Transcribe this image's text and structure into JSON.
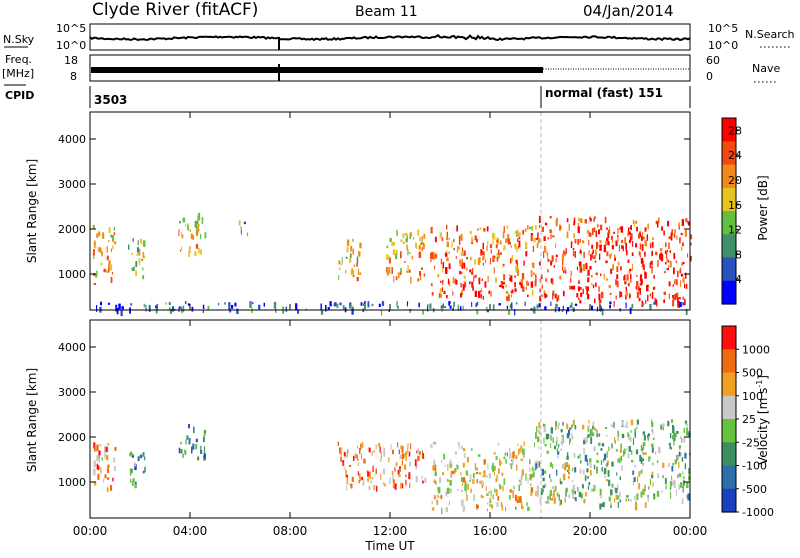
{
  "header": {
    "title": "Clyde River (fitACF)",
    "beam": "Beam 11",
    "date": "04/Jan/2014"
  },
  "strips": {
    "nsky": {
      "label": "N.Sky",
      "ticks": [
        "10^5",
        "10^0"
      ],
      "right_ticks": [
        "10^5",
        "10^0"
      ],
      "right_label": "N.Search"
    },
    "freq": {
      "label_top": "Freq.",
      "label_bottom": "[MHz]",
      "ticks": [
        "18",
        "8"
      ],
      "right_ticks": [
        "60",
        "0"
      ],
      "right_label": "Nave"
    },
    "cpid": {
      "label": "CPID",
      "left_value": "3503",
      "right_value": "normal (fast) 151"
    }
  },
  "chart_data": [
    {
      "type": "heatmap",
      "panel": "power",
      "ylabel": "Slant Range [km]",
      "yticks": [
        "1000",
        "2000",
        "3000",
        "4000"
      ],
      "ylim": [
        200,
        4600
      ],
      "xlim": [
        "00:00",
        "24:00"
      ],
      "colorbar": {
        "label": "Power [dB]",
        "ticks": [
          "4",
          "8",
          "12",
          "16",
          "20",
          "24",
          "28"
        ],
        "range": [
          0,
          30
        ],
        "colors": [
          "#0000ff",
          "#2a52be",
          "#3f8f6b",
          "#62c040",
          "#e6c41c",
          "#f08a1a",
          "#f04a0e",
          "#ff0000"
        ]
      },
      "blobs": [
        {
          "t": [
            0.1,
            1.0
          ],
          "r": [
            800,
            2100
          ],
          "level": 0.55
        },
        {
          "t": [
            1.5,
            2.2
          ],
          "r": [
            900,
            1800
          ],
          "level": 0.45
        },
        {
          "t": [
            3.5,
            4.6
          ],
          "r": [
            1500,
            2400
          ],
          "level": 0.5
        },
        {
          "t": [
            5.9,
            6.3
          ],
          "r": [
            1900,
            2300
          ],
          "level": 0.4
        },
        {
          "t": [
            9.9,
            10.8
          ],
          "r": [
            900,
            1800
          ],
          "level": 0.5
        },
        {
          "t": [
            11.8,
            13.4
          ],
          "r": [
            900,
            2000
          ],
          "level": 0.55
        },
        {
          "t": [
            13.6,
            17.8
          ],
          "r": [
            500,
            2100
          ],
          "level": 0.7
        },
        {
          "t": [
            17.8,
            24.0
          ],
          "r": [
            400,
            2300
          ],
          "level": 0.82
        },
        {
          "t": [
            0.0,
            24.0
          ],
          "r": [
            200,
            400
          ],
          "level": 0.1
        }
      ]
    },
    {
      "type": "heatmap",
      "panel": "velocity",
      "ylabel": "Slant Range [km]",
      "yticks": [
        "1000",
        "2000",
        "3000",
        "4000"
      ],
      "ylim": [
        200,
        4600
      ],
      "xlim": [
        "00:00",
        "24:00"
      ],
      "colorbar": {
        "label": "Velocity [m s",
        "label_sup": "-1",
        "label_end": "]",
        "ticks": [
          "1000",
          "500",
          "100",
          "25",
          "-25",
          "-100",
          "-500",
          "-1000"
        ],
        "colors": [
          "#1a3fbf",
          "#2e6ea8",
          "#3d8f62",
          "#66c23a",
          "#c8c8c8",
          "#f0a020",
          "#f06a10",
          "#ff1010"
        ]
      },
      "blobs": [
        {
          "t": [
            0.1,
            1.0
          ],
          "r": [
            800,
            1900
          ],
          "level": 0.7
        },
        {
          "t": [
            1.5,
            2.2
          ],
          "r": [
            900,
            1700
          ],
          "level": 0.3
        },
        {
          "t": [
            3.5,
            4.6
          ],
          "r": [
            1500,
            2300
          ],
          "level": 0.25
        },
        {
          "t": [
            9.9,
            13.4
          ],
          "r": [
            900,
            1900
          ],
          "level": 0.75
        },
        {
          "t": [
            13.6,
            17.8
          ],
          "r": [
            400,
            1900
          ],
          "level": 0.6
        },
        {
          "t": [
            17.8,
            24.0
          ],
          "r": [
            500,
            2400
          ],
          "level": 0.45
        }
      ]
    }
  ],
  "xaxis": {
    "ticks": [
      "00:00",
      "04:00",
      "08:00",
      "12:00",
      "16:00",
      "20:00",
      "00:00"
    ],
    "label": "Time UT"
  }
}
